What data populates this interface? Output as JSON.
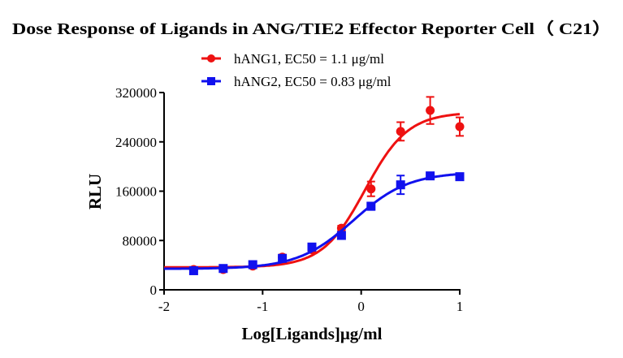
{
  "chart_data": {
    "type": "scatter",
    "title": "Dose Response of Ligands in ANG/TIE2 Effector Reporter Cell（ C21）",
    "xlabel": "Log[Ligands]μg/ml",
    "ylabel": "RLU",
    "xlim": [
      -2,
      1
    ],
    "ylim": [
      0,
      320000
    ],
    "x_ticks": [
      "-2",
      "-1",
      "0",
      "1"
    ],
    "y_ticks": [
      "0",
      "80000",
      "160000",
      "240000",
      "320000"
    ],
    "grid": false,
    "legend_position": "top-center",
    "series": [
      {
        "name": "hANG1, EC50 = 1.1 μg/ml",
        "color": "#ee1111",
        "marker": "circle",
        "x": [
          -1.7,
          -1.4,
          -1.1,
          -0.8,
          -0.5,
          -0.2,
          0.1,
          0.4,
          0.7,
          1.0
        ],
        "y": [
          33000,
          33000,
          38600,
          53000,
          65000,
          100000,
          163700,
          257000,
          291000,
          264700
        ],
        "error": [
          0,
          2000,
          2000,
          4000,
          3000,
          4000,
          12000,
          15000,
          22000,
          15000
        ],
        "fit": {
          "bottom": 36500,
          "top": 288000,
          "logEC50": 0.04,
          "hill": 2.0
        }
      },
      {
        "name": "hANG2, EC50 = 0.83 μg/ml",
        "color": "#1111ee",
        "marker": "square",
        "x": [
          -1.7,
          -1.4,
          -1.1,
          -0.8,
          -0.5,
          -0.2,
          0.1,
          0.4,
          0.7,
          1.0
        ],
        "y": [
          31000,
          34600,
          40800,
          51000,
          69400,
          88200,
          135600,
          170300,
          184800,
          183500
        ],
        "error": [
          2000,
          2000,
          3000,
          4000,
          3000,
          4000,
          6000,
          15000,
          3000,
          3000
        ],
        "fit": {
          "bottom": 34000,
          "top": 191000,
          "logEC50": -0.08,
          "hill": 1.55
        }
      }
    ]
  }
}
